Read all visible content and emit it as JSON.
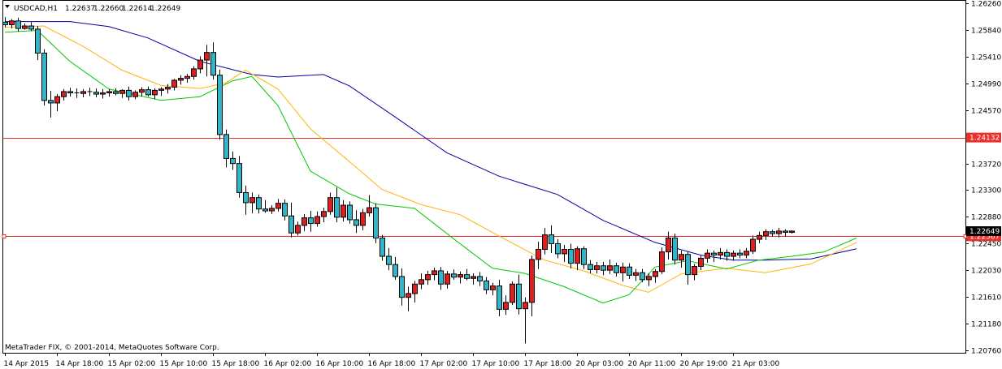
{
  "chart_data": {
    "type": "candlestick",
    "title": "USDCAD,H1",
    "ohlc": [
      "1.22637",
      "1.22660",
      "1.22614",
      "1.22649"
    ],
    "footer": "MetaTrader FIX, © 2001-2014, MetaQuotes Software Corp.",
    "y_ticks": [
      "1.26260",
      "1.25840",
      "1.25410",
      "1.24990",
      "1.24570",
      "1.23720",
      "1.23300",
      "1.22880",
      "1.22450",
      "1.22030",
      "1.21610",
      "1.21180",
      "1.20760"
    ],
    "ylim": [
      1.2076,
      1.2626
    ],
    "x_ticks": [
      "14 Apr 2015",
      "14 Apr 18:00",
      "15 Apr 02:00",
      "15 Apr 10:00",
      "15 Apr 18:00",
      "16 Apr 02:00",
      "16 Apr 10:00",
      "16 Apr 18:00",
      "17 Apr 02:00",
      "17 Apr 10:00",
      "17 Apr 18:00",
      "20 Apr 03:00",
      "20 Apr 11:00",
      "20 Apr 19:00",
      "21 Apr 03:00"
    ],
    "hlines": [
      {
        "value": 1.24132,
        "label": "1.24132",
        "color": "#e8302a"
      },
      {
        "value": 1.22567,
        "label": "1.22567",
        "color": "#e8302a"
      }
    ],
    "price_label": {
      "value": 1.22649,
      "label": "1.22649"
    },
    "candles": [
      [
        1.2596,
        1.2604,
        1.2588,
        1.2592
      ],
      [
        1.2592,
        1.2601,
        1.2586,
        1.2598
      ],
      [
        1.2598,
        1.2603,
        1.2581,
        1.2586
      ],
      [
        1.2586,
        1.2594,
        1.2584,
        1.259
      ],
      [
        1.259,
        1.2596,
        1.2582,
        1.2585
      ],
      [
        1.2585,
        1.259,
        1.2536,
        1.2547
      ],
      [
        1.2547,
        1.2553,
        1.2464,
        1.2472
      ],
      [
        1.2472,
        1.2487,
        1.2445,
        1.2468
      ],
      [
        1.2468,
        1.2482,
        1.2455,
        1.2478
      ],
      [
        1.2478,
        1.249,
        1.2472,
        1.2486
      ],
      [
        1.2486,
        1.2492,
        1.2478,
        1.2484
      ],
      [
        1.2484,
        1.2491,
        1.2476,
        1.2483
      ],
      [
        1.2483,
        1.249,
        1.2477,
        1.2486
      ],
      [
        1.2486,
        1.2492,
        1.2479,
        1.2485
      ],
      [
        1.2485,
        1.2491,
        1.2477,
        1.2482
      ],
      [
        1.2482,
        1.249,
        1.2475,
        1.2484
      ],
      [
        1.2484,
        1.249,
        1.2478,
        1.2486
      ],
      [
        1.2486,
        1.2491,
        1.248,
        1.2483
      ],
      [
        1.2483,
        1.249,
        1.2476,
        1.2488
      ],
      [
        1.2488,
        1.2494,
        1.2472,
        1.2478
      ],
      [
        1.2478,
        1.2488,
        1.2474,
        1.2485
      ],
      [
        1.2485,
        1.2493,
        1.2478,
        1.2489
      ],
      [
        1.2489,
        1.2494,
        1.2478,
        1.2481
      ],
      [
        1.2481,
        1.2491,
        1.2474,
        1.2488
      ],
      [
        1.2488,
        1.2493,
        1.2479,
        1.249
      ],
      [
        1.249,
        1.2498,
        1.2483,
        1.2493
      ],
      [
        1.2493,
        1.2506,
        1.2488,
        1.2504
      ],
      [
        1.2504,
        1.2512,
        1.2497,
        1.2507
      ],
      [
        1.2507,
        1.2514,
        1.25,
        1.251
      ],
      [
        1.251,
        1.2526,
        1.2505,
        1.2522
      ],
      [
        1.2522,
        1.2542,
        1.2515,
        1.2536
      ],
      [
        1.2536,
        1.256,
        1.251,
        1.2548
      ],
      [
        1.2548,
        1.2564,
        1.2505,
        1.2512
      ],
      [
        1.2512,
        1.2521,
        1.241,
        1.2418
      ],
      [
        1.2418,
        1.2426,
        1.2366,
        1.238
      ],
      [
        1.238,
        1.2391,
        1.2362,
        1.2372
      ],
      [
        1.2372,
        1.2384,
        1.2318,
        1.2326
      ],
      [
        1.2326,
        1.2337,
        1.2291,
        1.231
      ],
      [
        1.231,
        1.2326,
        1.2293,
        1.2318
      ],
      [
        1.2318,
        1.2323,
        1.2293,
        1.23
      ],
      [
        1.23,
        1.2314,
        1.2294,
        1.2297
      ],
      [
        1.2297,
        1.2306,
        1.2292,
        1.2301
      ],
      [
        1.2301,
        1.2316,
        1.2296,
        1.2309
      ],
      [
        1.2309,
        1.2315,
        1.2282,
        1.2289
      ],
      [
        1.2289,
        1.231,
        1.2255,
        1.2262
      ],
      [
        1.2262,
        1.228,
        1.2258,
        1.2274
      ],
      [
        1.2274,
        1.2292,
        1.2265,
        1.2286
      ],
      [
        1.2286,
        1.2297,
        1.2264,
        1.2277
      ],
      [
        1.2277,
        1.2296,
        1.2272,
        1.2288
      ],
      [
        1.2288,
        1.2302,
        1.2279,
        1.2296
      ],
      [
        1.2296,
        1.2326,
        1.2291,
        1.2318
      ],
      [
        1.2318,
        1.2334,
        1.2279,
        1.2287
      ],
      [
        1.2287,
        1.2314,
        1.228,
        1.2306
      ],
      [
        1.2306,
        1.2312,
        1.2277,
        1.2283
      ],
      [
        1.2283,
        1.2298,
        1.2262,
        1.2274
      ],
      [
        1.2274,
        1.23,
        1.2266,
        1.2294
      ],
      [
        1.2294,
        1.2322,
        1.2288,
        1.2302
      ],
      [
        1.2302,
        1.2309,
        1.2246,
        1.2254
      ],
      [
        1.2254,
        1.2259,
        1.2218,
        1.2225
      ],
      [
        1.2225,
        1.2238,
        1.2203,
        1.2212
      ],
      [
        1.2212,
        1.2224,
        1.2188,
        1.2193
      ],
      [
        1.2193,
        1.2206,
        1.2147,
        1.216
      ],
      [
        1.216,
        1.2177,
        1.2138,
        1.2166
      ],
      [
        1.2166,
        1.2186,
        1.2152,
        1.2181
      ],
      [
        1.2181,
        1.2198,
        1.2173,
        1.2188
      ],
      [
        1.2188,
        1.2202,
        1.218,
        1.2196
      ],
      [
        1.2196,
        1.2207,
        1.2187,
        1.2202
      ],
      [
        1.2202,
        1.2208,
        1.2172,
        1.2181
      ],
      [
        1.2181,
        1.2202,
        1.2174,
        1.2197
      ],
      [
        1.2197,
        1.2204,
        1.2188,
        1.2192
      ],
      [
        1.2192,
        1.2201,
        1.2182,
        1.2196
      ],
      [
        1.2196,
        1.2205,
        1.2187,
        1.219
      ],
      [
        1.219,
        1.2198,
        1.218,
        1.2193
      ],
      [
        1.2193,
        1.22,
        1.2178,
        1.2186
      ],
      [
        1.2186,
        1.2192,
        1.2165,
        1.2172
      ],
      [
        1.2172,
        1.2183,
        1.2163,
        1.2178
      ],
      [
        1.2178,
        1.2188,
        1.213,
        1.2141
      ],
      [
        1.2141,
        1.2163,
        1.2132,
        1.2152
      ],
      [
        1.2152,
        1.2185,
        1.2148,
        1.2181
      ],
      [
        1.2181,
        1.2196,
        1.2133,
        1.2142
      ],
      [
        1.2142,
        1.216,
        1.2087,
        1.2152
      ],
      [
        1.2152,
        1.2226,
        1.213,
        1.222
      ],
      [
        1.222,
        1.2248,
        1.2205,
        1.2236
      ],
      [
        1.2236,
        1.227,
        1.2228,
        1.2259
      ],
      [
        1.2259,
        1.2274,
        1.223,
        1.2245
      ],
      [
        1.2245,
        1.2252,
        1.2222,
        1.2229
      ],
      [
        1.2229,
        1.2243,
        1.2216,
        1.2236
      ],
      [
        1.2236,
        1.2245,
        1.2206,
        1.2214
      ],
      [
        1.2214,
        1.2241,
        1.2203,
        1.2237
      ],
      [
        1.2237,
        1.2241,
        1.2205,
        1.2212
      ],
      [
        1.2212,
        1.2219,
        1.2198,
        1.2204
      ],
      [
        1.2204,
        1.2216,
        1.2198,
        1.221
      ],
      [
        1.221,
        1.2216,
        1.2195,
        1.2203
      ],
      [
        1.2203,
        1.222,
        1.2197,
        1.221
      ],
      [
        1.221,
        1.2215,
        1.2193,
        1.2199
      ],
      [
        1.2199,
        1.2215,
        1.2185,
        1.2208
      ],
      [
        1.2208,
        1.2214,
        1.2189,
        1.2195
      ],
      [
        1.2195,
        1.2205,
        1.2186,
        1.2199
      ],
      [
        1.2199,
        1.2205,
        1.2184,
        1.2188
      ],
      [
        1.2188,
        1.2198,
        1.2178,
        1.2193
      ],
      [
        1.2193,
        1.2205,
        1.2183,
        1.2201
      ],
      [
        1.2201,
        1.2239,
        1.2197,
        1.2232
      ],
      [
        1.2232,
        1.2264,
        1.222,
        1.2254
      ],
      [
        1.2254,
        1.2261,
        1.2212,
        1.2219
      ],
      [
        1.2219,
        1.2234,
        1.2207,
        1.2228
      ],
      [
        1.2228,
        1.2233,
        1.218,
        1.2196
      ],
      [
        1.2196,
        1.2213,
        1.2187,
        1.2209
      ],
      [
        1.2209,
        1.2226,
        1.2203,
        1.2222
      ],
      [
        1.2222,
        1.2236,
        1.2215,
        1.223
      ],
      [
        1.223,
        1.2234,
        1.2216,
        1.2227
      ],
      [
        1.2227,
        1.2238,
        1.222,
        1.2231
      ],
      [
        1.2231,
        1.2236,
        1.2218,
        1.2225
      ],
      [
        1.2225,
        1.2234,
        1.2218,
        1.223
      ],
      [
        1.223,
        1.2236,
        1.2222,
        1.2227
      ],
      [
        1.2227,
        1.2238,
        1.2222,
        1.2233
      ],
      [
        1.2233,
        1.2258,
        1.2229,
        1.2252
      ],
      [
        1.2252,
        1.2264,
        1.2246,
        1.2258
      ],
      [
        1.2258,
        1.2268,
        1.2251,
        1.2264
      ],
      [
        1.2264,
        1.2267,
        1.2256,
        1.2261
      ],
      [
        1.2261,
        1.227,
        1.2255,
        1.2265
      ],
      [
        1.2265,
        1.2268,
        1.2256,
        1.2263
      ],
      [
        1.2263,
        1.2266,
        1.2261,
        1.2265
      ]
    ],
    "series": [
      {
        "color": "#0000a0",
        "points": [
          [
            0,
            1.2597
          ],
          [
            10,
            1.2597
          ],
          [
            16,
            1.2589
          ],
          [
            22,
            1.2571
          ],
          [
            30,
            1.2534
          ],
          [
            38,
            1.2513
          ],
          [
            42,
            1.2509
          ],
          [
            49,
            1.2513
          ],
          [
            53,
            1.2495
          ],
          [
            60,
            1.2446
          ],
          [
            68,
            1.2389
          ],
          [
            76,
            1.2352
          ],
          [
            85,
            1.2323
          ],
          [
            92,
            1.2282
          ],
          [
            100,
            1.2247
          ],
          [
            107,
            1.2227
          ],
          [
            112,
            1.2219
          ],
          [
            117,
            1.2219
          ],
          [
            124,
            1.2221
          ],
          [
            131,
            1.2237
          ]
        ]
      },
      {
        "color": "#ffb400",
        "points": [
          [
            0,
            1.2588
          ],
          [
            6,
            1.259
          ],
          [
            12,
            1.2558
          ],
          [
            18,
            1.252
          ],
          [
            24,
            1.2496
          ],
          [
            30,
            1.2491
          ],
          [
            34,
            1.25
          ],
          [
            37,
            1.252
          ],
          [
            42,
            1.249
          ],
          [
            47,
            1.2427
          ],
          [
            53,
            1.2375
          ],
          [
            58,
            1.2331
          ],
          [
            64,
            1.2307
          ],
          [
            70,
            1.2291
          ],
          [
            76,
            1.2257
          ],
          [
            83,
            1.2219
          ],
          [
            89,
            1.2202
          ],
          [
            95,
            1.2179
          ],
          [
            99,
            1.2168
          ],
          [
            104,
            1.2197
          ],
          [
            111,
            1.2206
          ],
          [
            117,
            1.2199
          ],
          [
            124,
            1.2213
          ],
          [
            131,
            1.2247
          ]
        ]
      },
      {
        "color": "#00c800",
        "points": [
          [
            0,
            1.258
          ],
          [
            5,
            1.2583
          ],
          [
            10,
            1.2534
          ],
          [
            16,
            1.249
          ],
          [
            24,
            1.2472
          ],
          [
            30,
            1.2478
          ],
          [
            35,
            1.2503
          ],
          [
            38,
            1.251
          ],
          [
            42,
            1.2464
          ],
          [
            47,
            1.236
          ],
          [
            53,
            1.2324
          ],
          [
            57,
            1.2308
          ],
          [
            63,
            1.2301
          ],
          [
            69,
            1.2253
          ],
          [
            75,
            1.2206
          ],
          [
            80,
            1.2198
          ],
          [
            86,
            1.2177
          ],
          [
            92,
            1.2151
          ],
          [
            96,
            1.2164
          ],
          [
            100,
            1.2208
          ],
          [
            105,
            1.2218
          ],
          [
            111,
            1.2205
          ],
          [
            116,
            1.2219
          ],
          [
            121,
            1.2225
          ],
          [
            126,
            1.2232
          ],
          [
            131,
            1.2254
          ]
        ]
      }
    ]
  }
}
